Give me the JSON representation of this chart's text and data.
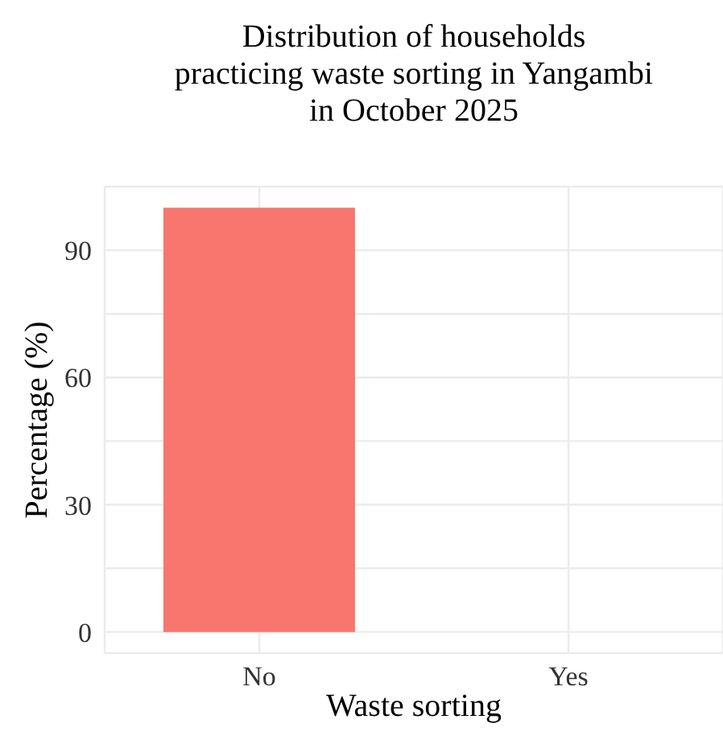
{
  "chart_data": {
    "type": "bar",
    "title": "Distribution of households\npracticing waste sorting in Yangambi\nin October 2025",
    "xlabel": "Waste sorting",
    "ylabel": "Percentage (%)",
    "categories": [
      "No",
      "Yes"
    ],
    "values": [
      100,
      0
    ],
    "color": "#f8766d",
    "ylim": [
      -5,
      105
    ],
    "yticks": [
      0,
      {
        "value": 15,
        "label": null
      },
      30,
      {
        "value": 45,
        "label": null
      },
      60,
      {
        "value": 75,
        "label": null
      },
      90,
      {
        "value": 105,
        "label": null
      }
    ],
    "grid": true
  }
}
